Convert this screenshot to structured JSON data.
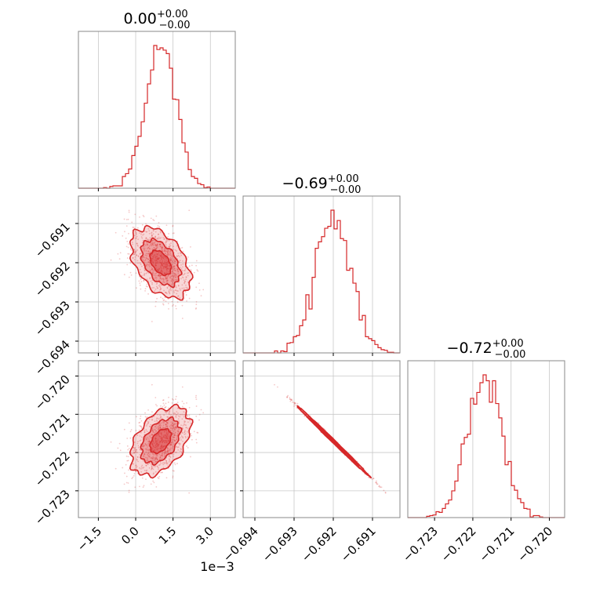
{
  "chart_data": {
    "type": "corner",
    "color": "#d62728",
    "grid": true,
    "parameters": [
      {
        "title_main": "0.00",
        "title_plus": "+0.00",
        "title_minus": "−0.00",
        "axis_range": [
          -0.0023,
          0.004
        ],
        "ticks": [
          -0.0015,
          0.0,
          0.0015,
          0.003
        ],
        "tick_labels": [
          "−1.5",
          "0.0",
          "1.5",
          "3.0"
        ],
        "offset_label": "1e−3",
        "mean": 0.001,
        "sigma": 0.0006
      },
      {
        "title_main": "−0.69",
        "title_plus": "+0.00",
        "title_minus": "−0.00",
        "axis_range": [
          -0.6943,
          -0.6903
        ],
        "ticks": [
          -0.694,
          -0.693,
          -0.692,
          -0.691
        ],
        "tick_labels": [
          "−0.694",
          "−0.693",
          "−0.692",
          "−0.691"
        ],
        "mean": -0.692,
        "sigma": 0.00045
      },
      {
        "title_main": "−0.72",
        "title_plus": "+0.00",
        "title_minus": "−0.00",
        "axis_range": [
          -0.7237,
          -0.7196
        ],
        "ticks": [
          -0.723,
          -0.722,
          -0.721,
          -0.72
        ],
        "tick_labels": [
          "−0.723",
          "−0.722",
          "−0.721",
          "−0.720"
        ],
        "mean": -0.7217,
        "sigma": 0.00045
      }
    ],
    "correlations": {
      "p0_p1": -0.45,
      "p0_p2": 0.45,
      "p1_p2": -0.998
    }
  }
}
